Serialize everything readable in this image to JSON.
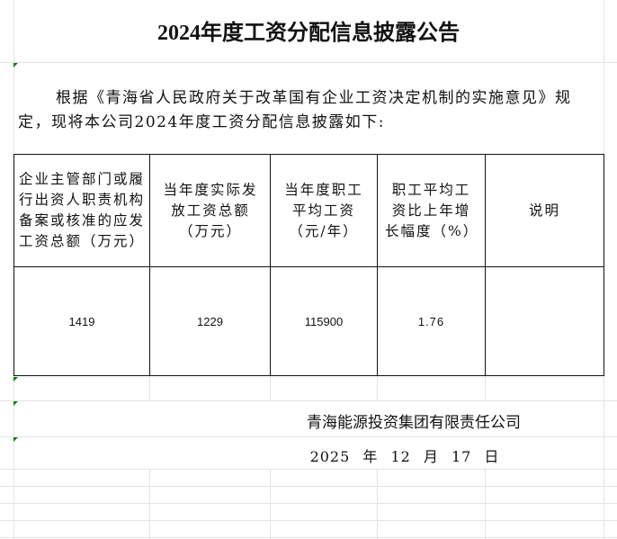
{
  "title": "2024年度工资分配信息披露公告",
  "intro": "根据《青海省人民政府关于改革国有企业工资决定机制的实施意见》规定，现将本公司2024年度工资分配信息披露如下:",
  "table": {
    "headers": [
      "企业主管部门或履行出资人职责机构备案或核准的应发工资总额（万元）",
      "当年度实际发放工资总额（万元）",
      "当年度职工平均工资（元/年）",
      "职工平均工资比上年增长幅度（%）",
      "说明"
    ],
    "row": [
      "1419",
      "1229",
      "115900",
      "1.76",
      ""
    ]
  },
  "footer": {
    "company": "青海能源投资集团有限责任公司",
    "date": "2025 年 12 月 17 日"
  },
  "colors": {
    "border": "#111111",
    "gridline": "#e3e3e3",
    "comment_marker": "#0a7d0a"
  }
}
